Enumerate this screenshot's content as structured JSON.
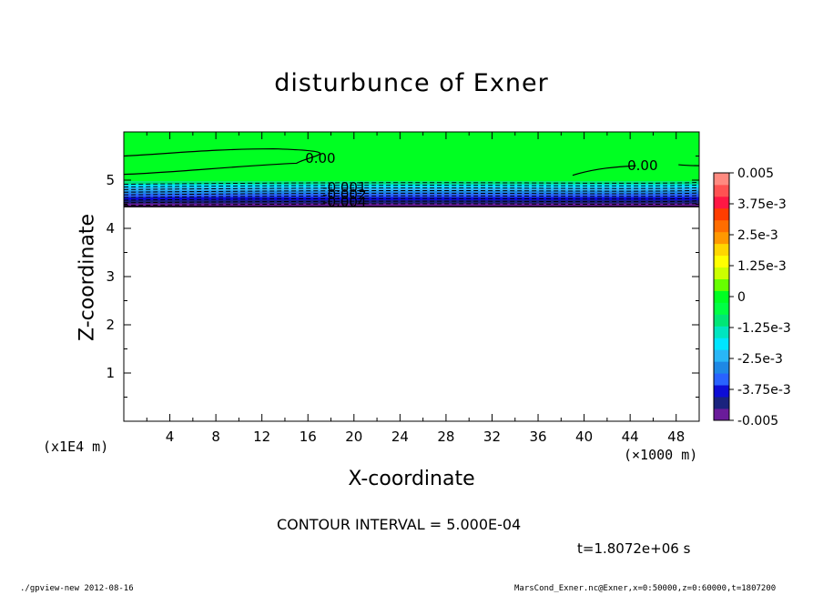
{
  "chart_data": {
    "type": "heatmap",
    "title": "disturbunce of Exner",
    "xlabel": "X-coordinate",
    "ylabel": "Z-coordinate",
    "x_unit": "(×1000 m)",
    "y_unit": "(x1E4 m)",
    "xlim": [
      0,
      50
    ],
    "ylim": [
      0,
      6
    ],
    "x_ticks": [
      4,
      8,
      12,
      16,
      20,
      24,
      28,
      32,
      36,
      40,
      44,
      48
    ],
    "y_ticks": [
      1,
      2,
      3,
      4,
      5
    ],
    "colorbar": {
      "labels": [
        "0.005",
        "3.75e-3",
        "2.5e-3",
        "1.25e-3",
        "0",
        "-1.25e-3",
        "-2.5e-3",
        "-3.75e-3",
        "-0.005"
      ],
      "min": -0.005,
      "max": 0.005,
      "colors": [
        "#6a1b9a",
        "#1a237e",
        "#0d0dd6",
        "#2962ff",
        "#1e88e5",
        "#29b6f6",
        "#00e5ff",
        "#00e5c0",
        "#00e676",
        "#00ff44",
        "#00ff22",
        "#66ff00",
        "#ccff00",
        "#ffff00",
        "#ffd600",
        "#ff9800",
        "#ff6d00",
        "#ff3d00",
        "#ff1744",
        "#ff5252",
        "#ff8a80"
      ]
    },
    "data_region": {
      "z_top": 6,
      "z_bottom": 4.45,
      "dominant_value": 0.0
    },
    "contour_labels": [
      {
        "text": "0.00",
        "x": 17.5,
        "z": 5.45
      },
      {
        "text": "0.00",
        "x": 45.5,
        "z": 5.3
      },
      {
        "text": "-0.001",
        "x": 19,
        "z": 4.85
      },
      {
        "text": "-0.002",
        "x": 19,
        "z": 4.7
      },
      {
        "text": "-0.004",
        "x": 19,
        "z": 4.55
      }
    ],
    "contour_interval_text": "CONTOUR INTERVAL = 5.000E-04",
    "time_text": "t=1.8072e+06 s"
  },
  "footer": {
    "left": "./gpview-new  2012-08-16",
    "right": "MarsCond_Exner.nc@Exner,x=0:50000,z=0:60000,t=1807200"
  }
}
